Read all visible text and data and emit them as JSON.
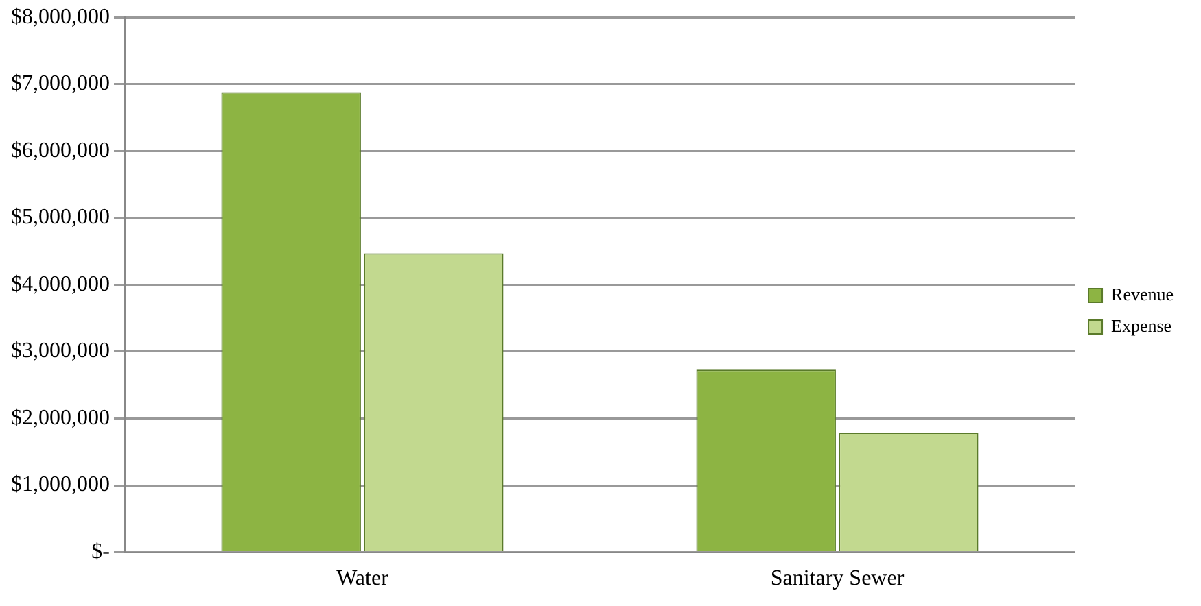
{
  "chart_data": {
    "type": "bar",
    "categories": [
      "Water",
      "Sanitary Sewer"
    ],
    "series": [
      {
        "name": "Revenue",
        "color": "#8db443",
        "values": [
          6880000,
          2730000
        ]
      },
      {
        "name": "Expense",
        "color": "#c2d98f",
        "values": [
          4470000,
          1790000
        ]
      }
    ],
    "ylim": [
      0,
      8000000
    ],
    "yticks": [
      {
        "value": 0,
        "label": "$-"
      },
      {
        "value": 1000000,
        "label": "$1,000,000"
      },
      {
        "value": 2000000,
        "label": "$2,000,000"
      },
      {
        "value": 3000000,
        "label": "$3,000,000"
      },
      {
        "value": 4000000,
        "label": "$4,000,000"
      },
      {
        "value": 5000000,
        "label": "$5,000,000"
      },
      {
        "value": 6000000,
        "label": "$6,000,000"
      },
      {
        "value": 7000000,
        "label": "$7,000,000"
      },
      {
        "value": 8000000,
        "label": "$8,000,000"
      }
    ],
    "grid": "y",
    "legend": "right"
  }
}
